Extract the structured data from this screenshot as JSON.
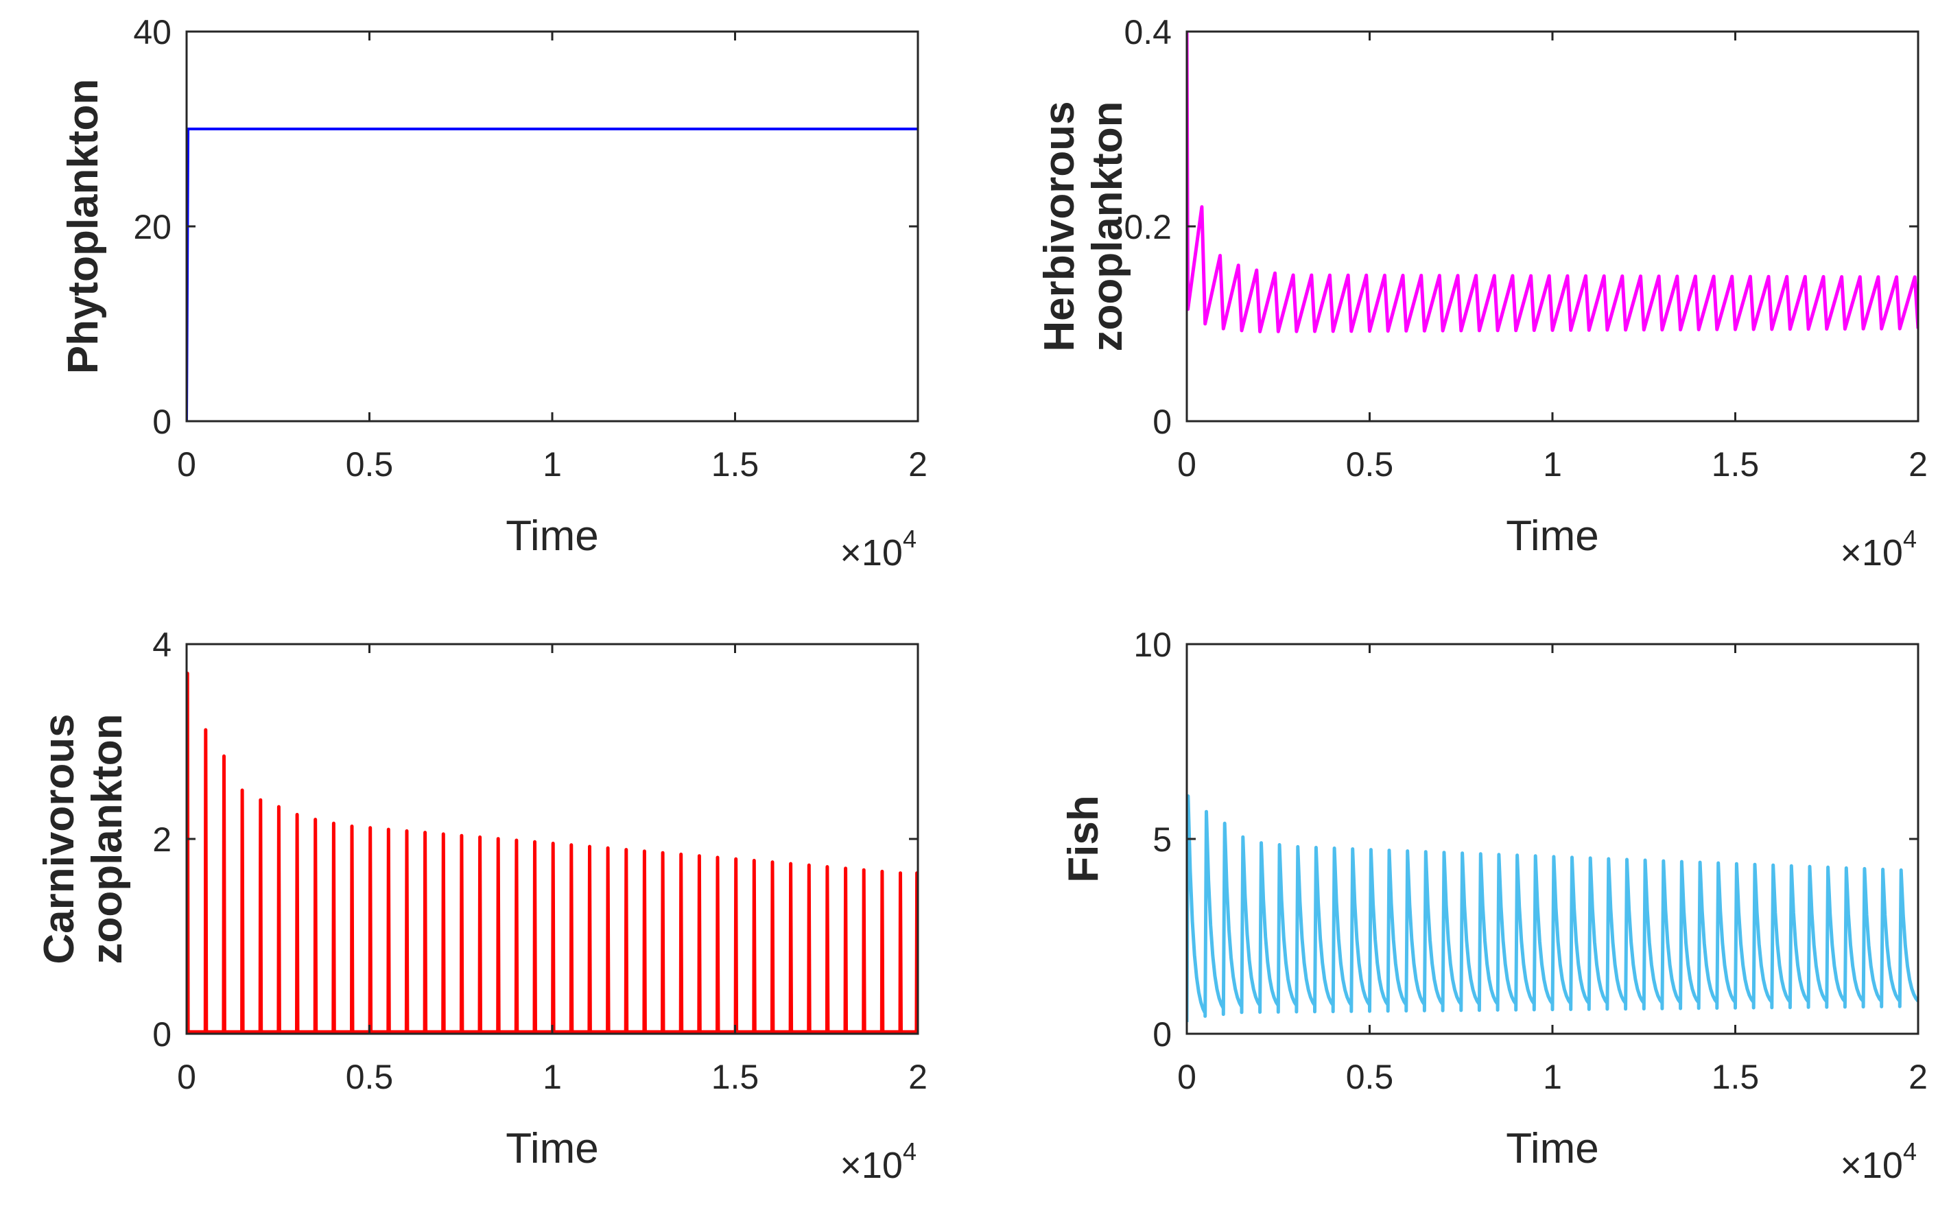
{
  "chart_data": [
    {
      "type": "line",
      "title": "",
      "xlabel": "Time",
      "ylabel": [
        "Phytoplankton"
      ],
      "x_multiplier": {
        "base": "×10",
        "exponent": "4"
      },
      "xlim": [
        0,
        20000
      ],
      "ylim": [
        0,
        40
      ],
      "x_ticks": [
        0,
        5000,
        10000,
        15000,
        20000
      ],
      "x_tick_labels": [
        "0",
        "0.5",
        "1",
        "1.5",
        "2"
      ],
      "y_ticks": [
        0,
        20,
        40
      ],
      "y_tick_labels": [
        "0",
        "20",
        "40"
      ],
      "grid": false,
      "series": [
        {
          "name": "Phytoplankton",
          "color": "#0000ff",
          "pattern": "step",
          "initial": 0,
          "steady": 30
        }
      ]
    },
    {
      "type": "line",
      "title": "",
      "xlabel": "Time",
      "ylabel": [
        "Herbivorous",
        "zooplankton"
      ],
      "x_multiplier": {
        "base": "×10",
        "exponent": "4"
      },
      "xlim": [
        0,
        20000
      ],
      "ylim": [
        0,
        0.4
      ],
      "x_ticks": [
        0,
        5000,
        10000,
        15000,
        20000
      ],
      "x_tick_labels": [
        "0",
        "0.5",
        "1",
        "1.5",
        "2"
      ],
      "y_ticks": [
        0,
        0.2,
        0.4
      ],
      "y_tick_labels": [
        "0",
        "0.2",
        "0.4"
      ],
      "grid": false,
      "series": [
        {
          "name": "Herbivorous zooplankton",
          "color": "#ff00ff",
          "pattern": "sawtooth",
          "period": 500,
          "initial_peak": 0.4,
          "peaks": [
            0.22,
            0.17,
            0.16,
            0.155,
            0.152,
            0.15
          ],
          "peak_final": 0.148,
          "troughs": [
            0.115,
            0.1,
            0.095,
            0.093,
            0.092
          ],
          "trough_final": 0.095
        }
      ]
    },
    {
      "type": "line",
      "title": "",
      "xlabel": "Time",
      "ylabel": [
        "Carnivorous",
        "zooplankton"
      ],
      "x_multiplier": {
        "base": "×10",
        "exponent": "4"
      },
      "xlim": [
        0,
        20000
      ],
      "ylim": [
        0,
        4
      ],
      "x_ticks": [
        0,
        5000,
        10000,
        15000,
        20000
      ],
      "x_tick_labels": [
        "0",
        "0.5",
        "1",
        "1.5",
        "2"
      ],
      "y_ticks": [
        0,
        2,
        4
      ],
      "y_tick_labels": [
        "0",
        "2",
        "4"
      ],
      "grid": false,
      "series": [
        {
          "name": "Carnivorous zooplankton",
          "color": "#ff0000",
          "pattern": "spikes",
          "period": 500,
          "peaks": [
            3.7,
            3.12,
            2.85,
            2.5,
            2.4,
            2.33,
            2.25,
            2.2,
            2.16,
            2.13
          ],
          "peak_final": 1.65,
          "baseline": 0.02
        }
      ]
    },
    {
      "type": "line",
      "title": "",
      "xlabel": "Time",
      "ylabel": [
        "Fish"
      ],
      "x_multiplier": {
        "base": "×10",
        "exponent": "4"
      },
      "xlim": [
        0,
        20000
      ],
      "ylim": [
        0,
        10
      ],
      "x_ticks": [
        0,
        5000,
        10000,
        15000,
        20000
      ],
      "x_tick_labels": [
        "0",
        "0.5",
        "1",
        "1.5",
        "2"
      ],
      "y_ticks": [
        0,
        5,
        10
      ],
      "y_tick_labels": [
        "0",
        "5",
        "10"
      ],
      "grid": false,
      "series": [
        {
          "name": "Fish",
          "color": "#4dbeee",
          "pattern": "decay-pulse",
          "period": 500,
          "peaks": [
            6.1,
            5.7,
            5.4,
            5.05,
            4.9,
            4.85,
            4.8,
            4.78
          ],
          "peak_final": 4.2,
          "troughs": [
            0.3,
            0.45,
            0.5,
            0.55
          ],
          "trough_final": 0.7
        }
      ]
    }
  ]
}
